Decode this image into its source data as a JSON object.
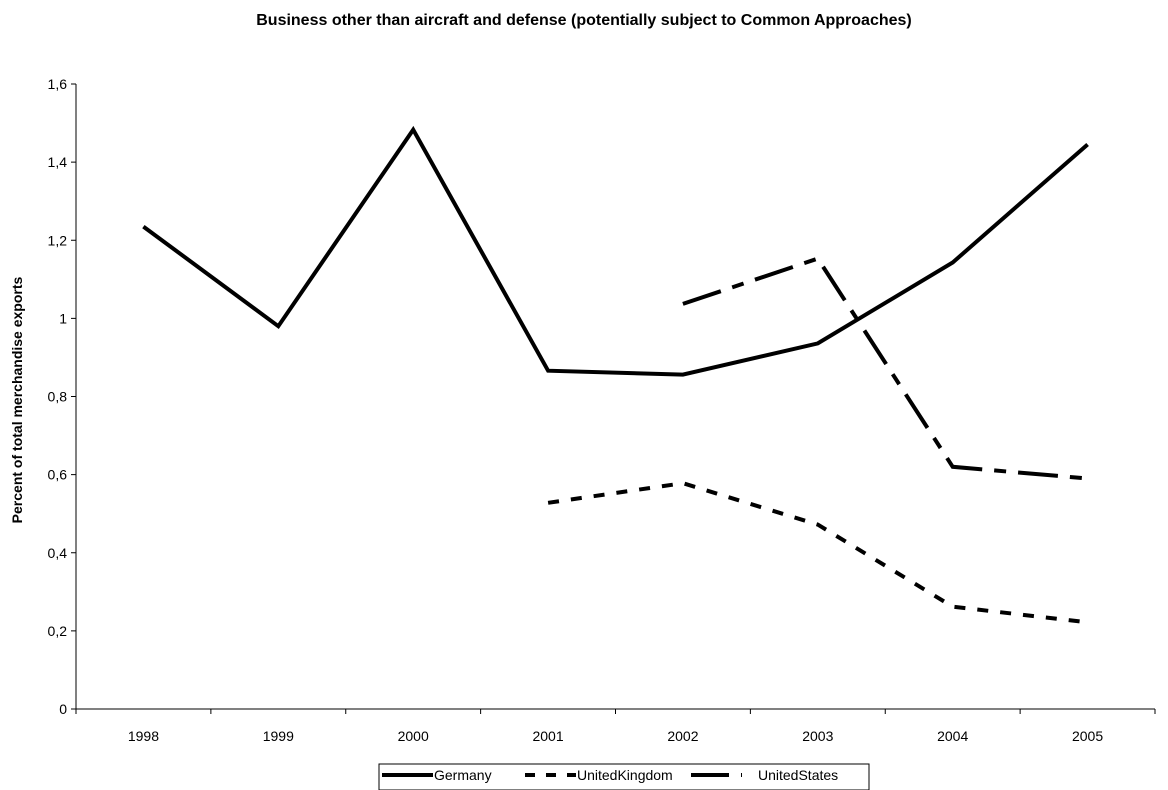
{
  "chart_data": {
    "type": "line",
    "title": "Business other than aircraft and defense (potentially subject to Common Approaches)",
    "xlabel": "",
    "ylabel": "Percent of total merchandise exports",
    "categories": [
      "1998",
      "1999",
      "2000",
      "2001",
      "2002",
      "2003",
      "2004",
      "2005"
    ],
    "y_ticks": [
      "0",
      "0,2",
      "0,4",
      "0,6",
      "0,8",
      "1",
      "1,2",
      "1,4",
      "1,6"
    ],
    "ylim": [
      0,
      1.6
    ],
    "grid": false,
    "legend_position": "bottom",
    "series": [
      {
        "name": "Germany",
        "style": "solid",
        "values": [
          1.235,
          0.98,
          1.483,
          0.866,
          0.856,
          0.936,
          1.143,
          1.445
        ]
      },
      {
        "name": "UnitedKingdom",
        "style": "short-dash",
        "values": [
          null,
          null,
          null,
          0.528,
          0.578,
          0.472,
          0.262,
          0.222
        ]
      },
      {
        "name": "UnitedStates",
        "style": "long-dash-dot",
        "values": [
          null,
          null,
          null,
          null,
          1.037,
          1.153,
          0.62,
          0.59
        ]
      }
    ]
  }
}
